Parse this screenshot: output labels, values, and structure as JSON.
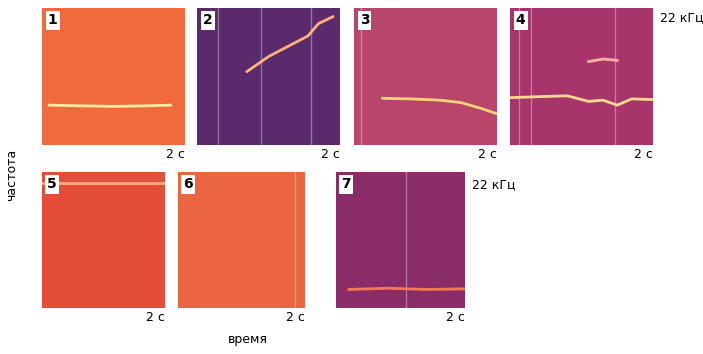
{
  "chart_data": [
    {
      "type": "spectrogram",
      "panel": "1",
      "background": "#f06a3c",
      "xlim": [
        0,
        2
      ],
      "ylim": [
        0,
        22
      ],
      "tick_labels": false,
      "traces": [
        {
          "color": "#ffe9a0",
          "t": [
            0.1,
            0.5,
            1.0,
            1.5,
            1.8
          ],
          "f": [
            6.4,
            6.3,
            6.2,
            6.3,
            6.4
          ]
        }
      ],
      "clicks": []
    },
    {
      "type": "spectrogram",
      "panel": "2",
      "background": "#5a2a6c",
      "xlim": [
        0,
        2
      ],
      "ylim": [
        0,
        22
      ],
      "tick_labels": false,
      "traces": [
        {
          "color": "#ffb27a",
          "t": [
            0.7,
            1.0,
            1.3,
            1.55,
            1.7,
            1.9
          ],
          "f": [
            11.8,
            14.2,
            16.0,
            17.5,
            19.5,
            20.6
          ]
        }
      ],
      "clicks": [
        0.3,
        0.9,
        1.6
      ]
    },
    {
      "type": "spectrogram",
      "panel": "3",
      "background": "#b8456a",
      "xlim": [
        0,
        2
      ],
      "ylim": [
        0,
        22
      ],
      "tick_labels": false,
      "traces": [
        {
          "color": "#ffd27a",
          "t": [
            0.4,
            0.8,
            1.2,
            1.5,
            1.8,
            2.0
          ],
          "f": [
            7.5,
            7.4,
            7.2,
            6.8,
            5.8,
            5.0
          ]
        }
      ],
      "clicks": [
        0.1
      ]
    },
    {
      "type": "spectrogram",
      "panel": "4",
      "background": "#a8346c",
      "xlim": [
        0,
        2
      ],
      "ylim": [
        0,
        22
      ],
      "tick_labels": false,
      "traces": [
        {
          "color": "#ffd890",
          "t": [
            0.0,
            0.5,
            0.8,
            1.1,
            1.3,
            1.5,
            1.7,
            2.0
          ],
          "f": [
            7.6,
            7.8,
            7.9,
            7.0,
            7.2,
            6.4,
            7.4,
            7.3
          ]
        },
        {
          "color": "#ffb0a0",
          "t": [
            1.1,
            1.3,
            1.5
          ],
          "f": [
            13.4,
            13.8,
            13.6
          ]
        }
      ],
      "clicks": [
        0.13,
        0.29,
        1.47
      ]
    },
    {
      "type": "spectrogram",
      "panel": "5",
      "background": "#e44e38",
      "xlim": [
        0,
        2
      ],
      "ylim": [
        0,
        22
      ],
      "tick_labels": false,
      "traces": [
        {
          "color": "#ffb08a",
          "t": [
            0.0,
            1.0,
            2.0
          ],
          "f": [
            20.2,
            20.2,
            20.2
          ]
        }
      ],
      "clicks": []
    },
    {
      "type": "spectrogram",
      "panel": "6",
      "background": "#ea6540",
      "xlim": [
        0,
        2
      ],
      "ylim": [
        0,
        22
      ],
      "tick_labels": false,
      "traces": [],
      "clicks": [
        1.85
      ]
    },
    {
      "type": "spectrogram",
      "panel": "7",
      "background": "#8a2c68",
      "xlim": [
        0,
        2
      ],
      "ylim": [
        0,
        22
      ],
      "tick_labels": false,
      "traces": [
        {
          "color": "#f57a50",
          "t": [
            0.2,
            0.8,
            1.4,
            2.0
          ],
          "f": [
            3.0,
            3.2,
            3.0,
            3.1
          ]
        }
      ],
      "clicks": [
        1.09
      ]
    }
  ],
  "time_label": "2 с",
  "freq_label": "22 кГц",
  "x_title": "время",
  "y_title": "частота"
}
